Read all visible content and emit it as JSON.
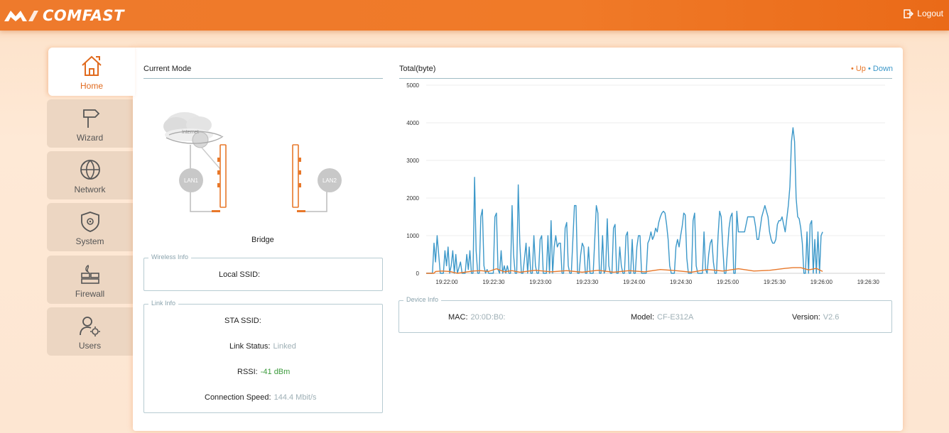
{
  "header": {
    "brand": "COMFAST",
    "logout_label": "Logout"
  },
  "sidebar": {
    "items": [
      {
        "label": "Home",
        "icon": "home-icon",
        "active": true
      },
      {
        "label": "Wizard",
        "icon": "signpost-icon",
        "active": false
      },
      {
        "label": "Network",
        "icon": "globe-icon",
        "active": false
      },
      {
        "label": "System",
        "icon": "shield-gear-icon",
        "active": false
      },
      {
        "label": "Firewall",
        "icon": "firewall-icon",
        "active": false
      },
      {
        "label": "Users",
        "icon": "user-settings-icon",
        "active": false
      }
    ]
  },
  "current_mode": {
    "title": "Current Mode",
    "mode": "Bridge",
    "internet_label": "Internet",
    "lan1_label": "LAN1",
    "lan2_label": "LAN2"
  },
  "wireless_info": {
    "legend": "Wireless Info",
    "local_ssid_label": "Local SSID:",
    "local_ssid_value": ""
  },
  "link_info": {
    "legend": "Link Info",
    "sta_ssid_label": "STA SSID:",
    "sta_ssid_value": "",
    "link_status_label": "Link Status:",
    "link_status_value": "Linked",
    "rssi_label": "RSSI:",
    "rssi_value": "-41 dBm",
    "speed_label": "Connection Speed:",
    "speed_value": "144.4 Mbit/s"
  },
  "traffic": {
    "title": "Total(byte)",
    "legend_up": "• Up",
    "legend_down": "• Down",
    "colors": {
      "up": "#e8782a",
      "down": "#3c98c9"
    }
  },
  "device_info": {
    "legend": "Device Info",
    "mac_label": "MAC:",
    "mac_value": "20:0D:B0:",
    "model_label": "Model:",
    "model_value": "CF-E312A",
    "version_label": "Version:",
    "version_value": "V2.6"
  },
  "chart_data": {
    "type": "line",
    "title": "Total(byte)",
    "xlabel": "",
    "ylabel": "",
    "ylim": [
      0,
      5000
    ],
    "yticks": [
      "0",
      "1000",
      "2000",
      "3000",
      "4000",
      "5000"
    ],
    "xticks": [
      "19:22:00",
      "19:22:30",
      "19:23:00",
      "19:23:30",
      "19:24:00",
      "19:24:30",
      "19:25:00",
      "19:25:30",
      "19:26:00",
      "19:26:30"
    ],
    "x_range_seconds": [
      0,
      294
    ],
    "grid": true,
    "legend_position": "top-right",
    "series": [
      {
        "name": "Down",
        "color": "#3c98c9",
        "points": [
          [
            0,
            0
          ],
          [
            4,
            0
          ],
          [
            5,
            800
          ],
          [
            6,
            300
          ],
          [
            7,
            1000
          ],
          [
            8,
            500
          ],
          [
            9,
            0
          ],
          [
            11,
            0
          ],
          [
            12,
            600
          ],
          [
            13,
            200
          ],
          [
            14,
            700
          ],
          [
            15,
            0
          ],
          [
            16,
            200
          ],
          [
            17,
            600
          ],
          [
            18,
            0
          ],
          [
            19,
            500
          ],
          [
            20,
            0
          ],
          [
            22,
            300
          ],
          [
            23,
            0
          ],
          [
            25,
            0
          ],
          [
            26,
            500
          ],
          [
            27,
            100
          ],
          [
            28,
            600
          ],
          [
            29,
            0
          ],
          [
            30,
            0
          ],
          [
            31,
            2550
          ],
          [
            32,
            600
          ],
          [
            33,
            0
          ],
          [
            34,
            0
          ],
          [
            35,
            1500
          ],
          [
            36,
            1700
          ],
          [
            37,
            200
          ],
          [
            38,
            0
          ],
          [
            39,
            100
          ],
          [
            40,
            0
          ],
          [
            43,
            0
          ],
          [
            44,
            1500
          ],
          [
            45,
            1600
          ],
          [
            46,
            100
          ],
          [
            47,
            0
          ],
          [
            48,
            600
          ],
          [
            49,
            0
          ],
          [
            50,
            200
          ],
          [
            51,
            0
          ],
          [
            52,
            200
          ],
          [
            53,
            0
          ],
          [
            54,
            0
          ],
          [
            55,
            1800
          ],
          [
            56,
            500
          ],
          [
            57,
            0
          ],
          [
            58,
            0
          ],
          [
            59,
            2350
          ],
          [
            60,
            800
          ],
          [
            61,
            0
          ],
          [
            62,
            0
          ],
          [
            63,
            400
          ],
          [
            64,
            800
          ],
          [
            65,
            0
          ],
          [
            66,
            700
          ],
          [
            67,
            0
          ],
          [
            68,
            0
          ],
          [
            69,
            1000
          ],
          [
            70,
            200
          ],
          [
            71,
            0
          ],
          [
            72,
            0
          ],
          [
            73,
            900
          ],
          [
            74,
            1000
          ],
          [
            75,
            0
          ],
          [
            77,
            0
          ],
          [
            78,
            1000
          ],
          [
            79,
            0
          ],
          [
            80,
            1400
          ],
          [
            81,
            0
          ],
          [
            82,
            700
          ],
          [
            83,
            1000
          ],
          [
            84,
            700
          ],
          [
            85,
            800
          ],
          [
            86,
            800
          ],
          [
            87,
            0
          ],
          [
            88,
            0
          ],
          [
            89,
            1200
          ],
          [
            90,
            1350
          ],
          [
            91,
            200
          ],
          [
            92,
            0
          ],
          [
            93,
            0
          ],
          [
            95,
            1800
          ],
          [
            96,
            1800
          ],
          [
            97,
            0
          ],
          [
            98,
            0
          ],
          [
            99,
            500
          ],
          [
            100,
            800
          ],
          [
            101,
            700
          ],
          [
            102,
            0
          ],
          [
            103,
            0
          ],
          [
            104,
            700
          ],
          [
            105,
            0
          ],
          [
            107,
            0
          ],
          [
            109,
            1800
          ],
          [
            110,
            1600
          ],
          [
            111,
            0
          ],
          [
            112,
            0
          ],
          [
            113,
            1000
          ],
          [
            114,
            0
          ],
          [
            115,
            100
          ],
          [
            116,
            1450
          ],
          [
            117,
            200
          ],
          [
            118,
            0
          ],
          [
            119,
            0
          ],
          [
            120,
            1200
          ],
          [
            121,
            1300
          ],
          [
            122,
            0
          ],
          [
            123,
            0
          ],
          [
            124,
            700
          ],
          [
            125,
            200
          ],
          [
            126,
            0
          ],
          [
            127,
            0
          ],
          [
            128,
            1000
          ],
          [
            129,
            1100
          ],
          [
            130,
            0
          ],
          [
            131,
            0
          ],
          [
            132,
            900
          ],
          [
            133,
            0
          ],
          [
            134,
            0
          ],
          [
            135,
            700
          ],
          [
            136,
            1000
          ],
          [
            137,
            1000
          ],
          [
            138,
            0
          ],
          [
            139,
            0
          ],
          [
            141,
            0
          ],
          [
            142,
            800
          ],
          [
            143,
            900
          ],
          [
            144,
            1100
          ],
          [
            145,
            900
          ],
          [
            146,
            1000
          ],
          [
            147,
            1200
          ],
          [
            148,
            1100
          ],
          [
            149,
            1350
          ],
          [
            150,
            1500
          ],
          [
            151,
            1600
          ],
          [
            152,
            1650
          ],
          [
            153,
            1600
          ],
          [
            154,
            1300
          ],
          [
            155,
            900
          ],
          [
            156,
            200
          ],
          [
            157,
            0
          ],
          [
            159,
            0
          ],
          [
            160,
            700
          ],
          [
            161,
            900
          ],
          [
            162,
            700
          ],
          [
            163,
            1000
          ],
          [
            164,
            1250
          ],
          [
            165,
            1600
          ],
          [
            166,
            1550
          ],
          [
            167,
            400
          ],
          [
            168,
            0
          ],
          [
            170,
            0
          ],
          [
            171,
            1400
          ],
          [
            172,
            1600
          ],
          [
            173,
            200
          ],
          [
            174,
            0
          ],
          [
            176,
            0
          ],
          [
            177,
            0
          ],
          [
            178,
            1100
          ],
          [
            179,
            100
          ],
          [
            180,
            0
          ],
          [
            181,
            500
          ],
          [
            182,
            800
          ],
          [
            183,
            900
          ],
          [
            184,
            300
          ],
          [
            185,
            0
          ],
          [
            186,
            0
          ],
          [
            187,
            1000
          ],
          [
            188,
            1650
          ],
          [
            189,
            1500
          ],
          [
            190,
            700
          ],
          [
            191,
            0
          ],
          [
            192,
            0
          ],
          [
            193,
            600
          ],
          [
            194,
            1200
          ],
          [
            195,
            1500
          ],
          [
            196,
            1600
          ],
          [
            197,
            0
          ],
          [
            198,
            0
          ],
          [
            199,
            1650
          ],
          [
            200,
            1100
          ],
          [
            201,
            1100
          ],
          [
            202,
            1100
          ],
          [
            203,
            1100
          ],
          [
            204,
            1100
          ],
          [
            205,
            1300
          ],
          [
            206,
            1500
          ],
          [
            207,
            1500
          ],
          [
            208,
            1500
          ],
          [
            209,
            1500
          ],
          [
            210,
            1500
          ],
          [
            211,
            1250
          ],
          [
            212,
            900
          ],
          [
            213,
            900
          ],
          [
            214,
            1200
          ],
          [
            215,
            1500
          ],
          [
            216,
            1650
          ],
          [
            217,
            1800
          ],
          [
            218,
            1650
          ],
          [
            219,
            1500
          ],
          [
            220,
            1100
          ],
          [
            221,
            900
          ],
          [
            222,
            800
          ],
          [
            223,
            800
          ],
          [
            224,
            900
          ],
          [
            225,
            1300
          ],
          [
            226,
            1400
          ],
          [
            227,
            1400
          ],
          [
            228,
            1500
          ],
          [
            229,
            1300
          ],
          [
            230,
            1100
          ],
          [
            231,
            1450
          ],
          [
            232,
            1800
          ],
          [
            233,
            2300
          ],
          [
            234,
            3500
          ],
          [
            235,
            3870
          ],
          [
            236,
            3500
          ],
          [
            237,
            2000
          ],
          [
            238,
            1500
          ],
          [
            239,
            1450
          ],
          [
            240,
            1200
          ],
          [
            241,
            800
          ],
          [
            242,
            0
          ],
          [
            243,
            0
          ],
          [
            244,
            1100
          ],
          [
            245,
            0
          ],
          [
            246,
            1300
          ],
          [
            247,
            1400
          ],
          [
            248,
            0
          ],
          [
            249,
            900
          ],
          [
            250,
            0
          ],
          [
            251,
            1100
          ],
          [
            252,
            0
          ],
          [
            253,
            1000
          ],
          [
            254,
            1100
          ]
        ]
      },
      {
        "name": "Up",
        "color": "#e8782a",
        "points": [
          [
            0,
            0
          ],
          [
            5,
            0
          ],
          [
            6,
            50
          ],
          [
            10,
            60
          ],
          [
            15,
            50
          ],
          [
            20,
            0
          ],
          [
            30,
            60
          ],
          [
            35,
            70
          ],
          [
            40,
            50
          ],
          [
            45,
            120
          ],
          [
            50,
            40
          ],
          [
            55,
            70
          ],
          [
            60,
            30
          ],
          [
            70,
            80
          ],
          [
            80,
            40
          ],
          [
            90,
            70
          ],
          [
            100,
            30
          ],
          [
            110,
            80
          ],
          [
            120,
            30
          ],
          [
            130,
            70
          ],
          [
            140,
            40
          ],
          [
            150,
            100
          ],
          [
            160,
            70
          ],
          [
            170,
            30
          ],
          [
            180,
            100
          ],
          [
            190,
            60
          ],
          [
            200,
            120
          ],
          [
            210,
            60
          ],
          [
            220,
            80
          ],
          [
            230,
            130
          ],
          [
            235,
            150
          ],
          [
            240,
            150
          ],
          [
            245,
            90
          ],
          [
            250,
            130
          ],
          [
            254,
            50
          ]
        ]
      }
    ]
  }
}
